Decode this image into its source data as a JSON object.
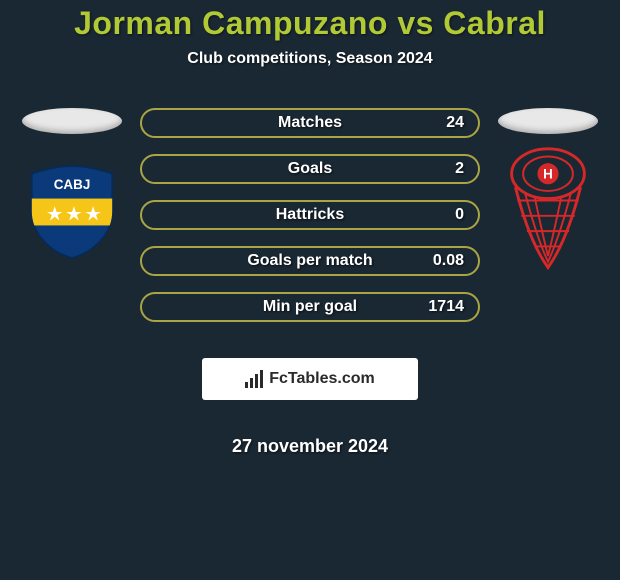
{
  "title": "Jorman Campuzano vs Cabral",
  "subtitle": "Club competitions, Season 2024",
  "date": "27 november 2024",
  "logo": {
    "text": "FcTables.com"
  },
  "colors": {
    "background": "#1a2833",
    "accent": "#b0c934",
    "pill_border": "#a9a545",
    "pill_fill": "#6b6a36",
    "text": "#ffffff"
  },
  "stats": [
    {
      "label": "Matches",
      "value": "24",
      "fill_pct": 0
    },
    {
      "label": "Goals",
      "value": "2",
      "fill_pct": 0
    },
    {
      "label": "Hattricks",
      "value": "0",
      "fill_pct": 0
    },
    {
      "label": "Goals per match",
      "value": "0.08",
      "fill_pct": 0
    },
    {
      "label": "Min per goal",
      "value": "1714",
      "fill_pct": 0
    }
  ],
  "left_club": {
    "name": "boca-juniors",
    "shield_bg": "#0a3a7a",
    "band": "#f5c518",
    "text": "CABJ"
  },
  "right_club": {
    "name": "huracan",
    "stroke": "#d62828",
    "fill": "#ffffff"
  }
}
